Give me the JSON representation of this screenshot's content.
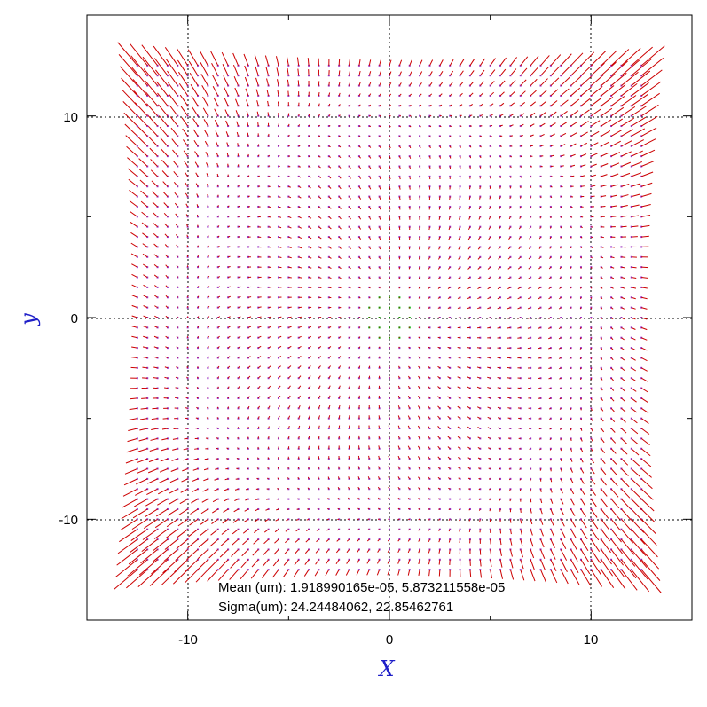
{
  "chart_data": {
    "type": "vector_field",
    "xlabel": "X",
    "ylabel": "y",
    "xlim": [
      -15,
      15
    ],
    "ylim": [
      -15,
      15
    ],
    "xticks": [
      -10,
      0,
      10
    ],
    "yticks": [
      -10,
      0,
      10
    ],
    "x_tick_labels": [
      "-10",
      "0",
      "10"
    ],
    "y_tick_labels": [
      "-10",
      "0",
      "10"
    ],
    "grid": "dotted at major ticks",
    "field": {
      "x_start": -12.5,
      "x_end": 12.5,
      "y_start": -12.5,
      "y_end": 12.5,
      "step": 0.5,
      "description": "radial/rotational distortion vectors, large near edges, small near center"
    },
    "colors": {
      "vector": "#cc0000",
      "point_small": "#00aa00",
      "point_mid": "#9933cc",
      "axis_label": "#1f1fc8",
      "grid": "#000000"
    },
    "annotations": {
      "mean": "Mean (um): 1.918990165e-05, 5.873211558e-05",
      "sigma": "Sigma(um): 24.24484062, 22.85462761"
    }
  }
}
